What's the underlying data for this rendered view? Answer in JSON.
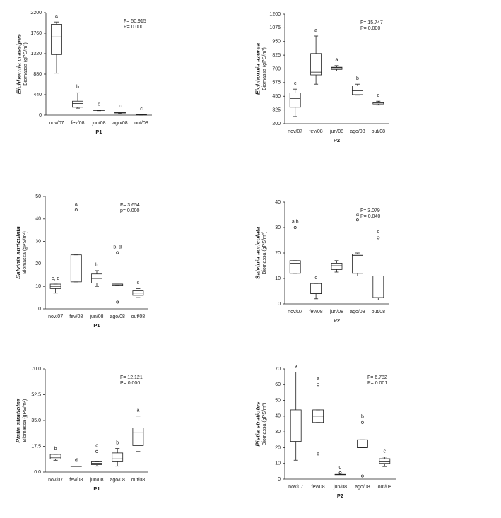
{
  "chart_data": [
    {
      "type": "box",
      "title": "Eichhornia crassipes",
      "ylabel": "Biomassa (gPS/m²)",
      "xlabel": "P1",
      "categories": [
        "nov/07",
        "fev/08",
        "jun/08",
        "ago/08",
        "out/08"
      ],
      "ylim": [
        0,
        2200
      ],
      "yticks": [
        0,
        440,
        880,
        1320,
        1760,
        2200
      ],
      "annotations": [
        "F= 50.915",
        "P= 0.000"
      ],
      "boxes": [
        {
          "min": 900,
          "q1": 1300,
          "median": 1680,
          "q3": 1950,
          "max": 2000,
          "letter": "a"
        },
        {
          "min": 150,
          "q1": 170,
          "median": 250,
          "q3": 300,
          "max": 480,
          "letter": "b"
        },
        {
          "min": 95,
          "q1": 100,
          "median": 105,
          "q3": 110,
          "max": 115,
          "letter": "c"
        },
        {
          "min": 30,
          "q1": 45,
          "median": 55,
          "q3": 60,
          "max": 70,
          "letter": "c"
        },
        {
          "min": 0,
          "q1": 5,
          "median": 8,
          "q3": 10,
          "max": 15,
          "letter": "c"
        }
      ]
    },
    {
      "type": "box",
      "title": "Eichhornia azurea",
      "ylabel": "Biomassa (gPS/m²)",
      "xlabel": "P2",
      "categories": [
        "nov/07",
        "fev/08",
        "jun/08",
        "ago/08",
        "out/08"
      ],
      "ylim": [
        200,
        1200
      ],
      "yticks": [
        200,
        325,
        450,
        575,
        700,
        825,
        950,
        1075,
        1200
      ],
      "annotations": [
        "F= 15.747",
        "P= 0.000"
      ],
      "boxes": [
        {
          "min": 265,
          "q1": 350,
          "median": 430,
          "q3": 480,
          "max": 515,
          "letter": "c"
        },
        {
          "min": 560,
          "q1": 645,
          "median": 670,
          "q3": 840,
          "max": 1000,
          "letter": "a"
        },
        {
          "min": 680,
          "q1": 695,
          "median": 710,
          "q3": 715,
          "max": 730,
          "letter": "a"
        },
        {
          "min": 460,
          "q1": 465,
          "median": 500,
          "q3": 545,
          "max": 560,
          "letter": "b"
        },
        {
          "min": 370,
          "q1": 380,
          "median": 390,
          "q3": 395,
          "max": 405,
          "letter": "c"
        }
      ]
    },
    {
      "type": "box",
      "title": "Salvinia auriculata",
      "ylabel": "Biomassa (gPS/m²)",
      "xlabel": "P1",
      "categories": [
        "nov/07",
        "fev/08",
        "jun/08",
        "ago/08",
        "out/08"
      ],
      "ylim": [
        0,
        50
      ],
      "yticks": [
        0,
        10,
        20,
        30,
        40,
        50
      ],
      "annotations": [
        "F= 3.654",
        "p= 0.000"
      ],
      "boxes": [
        {
          "min": 7,
          "q1": 9,
          "median": 10,
          "q3": 11,
          "max": 11,
          "letter": "c, d"
        },
        {
          "min": 12,
          "q1": 12,
          "median": 20,
          "q3": 24,
          "max": 24,
          "letter": "a",
          "outliers": [
            44
          ]
        },
        {
          "min": 10,
          "q1": 11.5,
          "median": 13.5,
          "q3": 15.5,
          "max": 17,
          "letter": "b"
        },
        {
          "min": 10.5,
          "q1": 10.5,
          "median": 11,
          "q3": 11,
          "max": 11,
          "letter": "b, d",
          "outliers": [
            25,
            3
          ]
        },
        {
          "min": 5,
          "q1": 6,
          "median": 7,
          "q3": 8,
          "max": 9,
          "letter": "c"
        }
      ]
    },
    {
      "type": "box",
      "title": "Salvinia auriculata",
      "ylabel": "Biomassa (gPS/m²)",
      "xlabel": "P2",
      "categories": [
        "nov/07",
        "fev/08",
        "jun/08",
        "ago/08",
        "out/08"
      ],
      "ylim": [
        0,
        40
      ],
      "yticks": [
        0,
        10,
        20,
        30,
        40
      ],
      "annotations": [
        "F= 3.079",
        "P= 0.040"
      ],
      "boxes": [
        {
          "min": 12,
          "q1": 12,
          "median": 16,
          "q3": 17,
          "max": 17,
          "letter": "a   b",
          "outliers": [
            30
          ]
        },
        {
          "min": 2,
          "q1": 4,
          "median": 4,
          "q3": 8,
          "max": 8,
          "letter": "c"
        },
        {
          "min": 12.5,
          "q1": 13.5,
          "median": 15,
          "q3": 16,
          "max": 17
        },
        {
          "min": 11,
          "q1": 12,
          "median": 19,
          "q3": 19.5,
          "max": 20,
          "letter": "a",
          "outliers": [
            33
          ]
        },
        {
          "min": 1.5,
          "q1": 2.5,
          "median": 3.5,
          "q3": 11,
          "max": 11,
          "letter": "c",
          "outliers": [
            26
          ]
        }
      ]
    },
    {
      "type": "box",
      "title": "Pistia stratiotes",
      "ylabel": "Biomassa (gPS/m²)",
      "xlabel": "P1",
      "categories": [
        "nov/07",
        "fev/08",
        "jun/08",
        "ago/08",
        "out/08"
      ],
      "ylim": [
        0,
        70
      ],
      "yticks": [
        {
          "value": 0,
          "label": "0.0"
        },
        17.5,
        {
          "value": 35,
          "label": "35.0"
        },
        52.5,
        {
          "value": 70,
          "label": "70.0"
        }
      ],
      "annotations": [
        "F= 12.121",
        "P= 0.000"
      ],
      "boxes": [
        {
          "min": 8,
          "q1": 9,
          "median": 10,
          "q3": 12,
          "max": 12,
          "letter": "b"
        },
        {
          "min": 4,
          "q1": 4,
          "median": 4,
          "q3": 4,
          "max": 4,
          "letter": "d"
        },
        {
          "min": 4,
          "q1": 5,
          "median": 6,
          "q3": 7,
          "max": 7,
          "letter": "c",
          "outliers": [
            14
          ]
        },
        {
          "min": 4,
          "q1": 7,
          "median": 9,
          "q3": 13,
          "max": 16,
          "letter": "b"
        },
        {
          "min": 14,
          "q1": 18,
          "median": 27,
          "q3": 30,
          "max": 38,
          "letter": "a"
        }
      ]
    },
    {
      "type": "box",
      "title": "Pistia stratiotes",
      "ylabel": "Biomassa (gPS/m²)",
      "xlabel": "P2",
      "categories": [
        "nov/07",
        "fev/08",
        "jun/08",
        "ago/08",
        "out/08"
      ],
      "ylim": [
        0,
        70
      ],
      "yticks": [
        0,
        10,
        20,
        30,
        40,
        50,
        60,
        70
      ],
      "annotations": [
        "F= 6.782",
        "P= 0.001"
      ],
      "boxes": [
        {
          "min": 12,
          "q1": 24,
          "median": 28,
          "q3": 44,
          "max": 68,
          "letter": "a"
        },
        {
          "min": 36,
          "q1": 36,
          "median": 40,
          "q3": 44,
          "max": 44,
          "letter": "a",
          "outliers": [
            60,
            16
          ]
        },
        {
          "min": 3,
          "q1": 3,
          "median": 3,
          "q3": 3,
          "max": 3,
          "letter": "d",
          "outliers": [
            4
          ]
        },
        {
          "min": 20,
          "q1": 20,
          "median": 20,
          "q3": 25,
          "max": 25,
          "letter": "b",
          "outliers": [
            36,
            2
          ]
        },
        {
          "min": 8,
          "q1": 10,
          "median": 11,
          "q3": 13,
          "max": 14,
          "letter": "c"
        }
      ]
    }
  ]
}
